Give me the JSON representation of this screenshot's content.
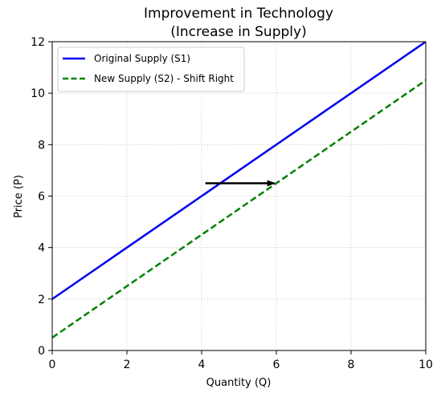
{
  "chart_data": {
    "type": "line",
    "title_line1": "Improvement in Technology",
    "title_line2": "(Increase in Supply)",
    "xlabel": "Quantity (Q)",
    "ylabel": "Price (P)",
    "xlim": [
      0,
      10
    ],
    "ylim": [
      0,
      12
    ],
    "xticks": [
      0,
      2,
      4,
      6,
      8,
      10
    ],
    "yticks": [
      0,
      2,
      4,
      6,
      8,
      10,
      12
    ],
    "grid": true,
    "legend_position": "top-left",
    "series": [
      {
        "name": "Original Supply (S1)",
        "x": [
          0,
          10
        ],
        "y": [
          2,
          12
        ],
        "color": "#0000ee",
        "style": "solid"
      },
      {
        "name": "New Supply (S2) - Shift Right",
        "x": [
          0,
          10
        ],
        "y": [
          0.5,
          10.5
        ],
        "color": "#008000",
        "style": "dashed"
      }
    ],
    "annotations": [
      {
        "type": "arrow",
        "from": [
          4.1,
          6.5
        ],
        "to": [
          5.95,
          6.5
        ],
        "color": "#000000"
      }
    ]
  }
}
